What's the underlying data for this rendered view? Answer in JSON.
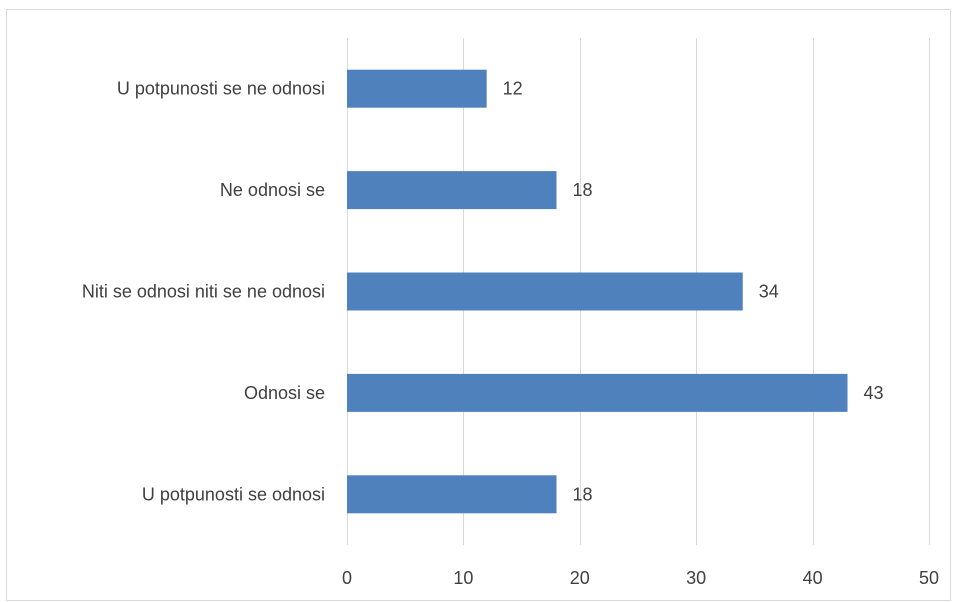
{
  "chart_data": {
    "type": "bar",
    "orientation": "horizontal",
    "title": "",
    "xlabel": "",
    "ylabel": "",
    "categories": [
      "U potpunosti se ne odnosi",
      "Ne odnosi se",
      "Niti se odnosi niti se ne odnosi",
      "Odnosi se",
      "U potpunosti se odnosi"
    ],
    "values": [
      12,
      18,
      34,
      43,
      18
    ],
    "xlim": [
      0,
      50
    ],
    "xticks": [
      0,
      10,
      20,
      30,
      40,
      50
    ],
    "grid": "vertical",
    "legend": "none",
    "bar_color": "#4f81bd",
    "data_labels": true
  }
}
